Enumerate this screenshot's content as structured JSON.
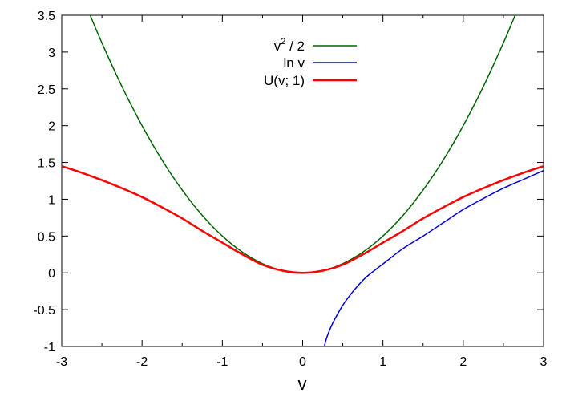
{
  "chart_data": {
    "type": "line",
    "title": "",
    "xlabel": "v",
    "ylabel": "",
    "xlim": [
      -3,
      3
    ],
    "ylim": [
      -1,
      3.5
    ],
    "xticks": [
      -3,
      -2,
      -1,
      0,
      1,
      2,
      3
    ],
    "xtick_labels": [
      "-3",
      "-2",
      "-1",
      "0",
      "1",
      "2",
      "3"
    ],
    "yticks": [
      -1,
      -0.5,
      0,
      0.5,
      1,
      1.5,
      2,
      2.5,
      3,
      3.5
    ],
    "ytick_labels": [
      "-1",
      "-0.5",
      "0",
      "0.5",
      "1",
      "1.5",
      "2",
      "2.5",
      "3",
      "3.5"
    ],
    "grid": false,
    "legend_position": "top-center",
    "series": [
      {
        "name": "v² / 2",
        "name_base": "v",
        "name_sup": "2",
        "name_tail": " / 2",
        "color": "#006400",
        "x": [
          -2.65,
          -2.5,
          -2.25,
          -2,
          -1.75,
          -1.5,
          -1.25,
          -1,
          -0.75,
          -0.5,
          -0.25,
          0,
          0.25,
          0.5,
          0.75,
          1,
          1.25,
          1.5,
          1.75,
          2,
          2.25,
          2.5,
          2.65
        ],
        "y": [
          3.511,
          3.125,
          2.531,
          2,
          1.531,
          1.125,
          0.781,
          0.5,
          0.281,
          0.125,
          0.031,
          0,
          0.031,
          0.125,
          0.281,
          0.5,
          0.781,
          1.125,
          1.531,
          2,
          2.531,
          3.125,
          3.511
        ]
      },
      {
        "name": "ln v",
        "color": "#0000dd",
        "x": [
          0.27,
          0.3,
          0.35,
          0.4,
          0.5,
          0.6,
          0.7,
          0.8,
          1,
          1.25,
          1.5,
          1.75,
          2,
          2.25,
          2.5,
          2.75,
          3
        ],
        "y": [
          -1,
          -0.88,
          -0.74,
          -0.63,
          -0.44,
          -0.29,
          -0.16,
          -0.05,
          0.12,
          0.33,
          0.5,
          0.68,
          0.86,
          1.01,
          1.15,
          1.27,
          1.39
        ]
      },
      {
        "name": "U(v; 1)",
        "color": "#ff0000",
        "x": [
          -3,
          -2.75,
          -2.5,
          -2.25,
          -2,
          -1.75,
          -1.5,
          -1.25,
          -1,
          -0.75,
          -0.5,
          -0.25,
          0,
          0.25,
          0.5,
          0.75,
          1,
          1.25,
          1.5,
          1.75,
          2,
          2.25,
          2.5,
          2.75,
          3
        ],
        "y": [
          1.45,
          1.36,
          1.26,
          1.15,
          1.03,
          0.89,
          0.74,
          0.57,
          0.41,
          0.25,
          0.11,
          0.03,
          0,
          0.03,
          0.11,
          0.25,
          0.41,
          0.57,
          0.74,
          0.89,
          1.03,
          1.15,
          1.26,
          1.36,
          1.45
        ]
      }
    ]
  }
}
